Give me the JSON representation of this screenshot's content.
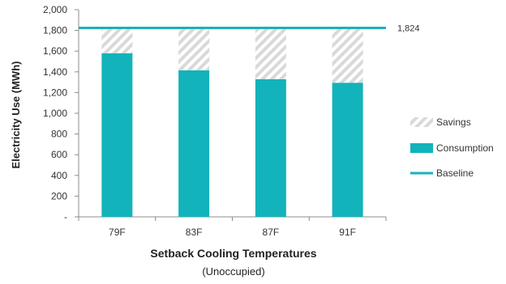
{
  "chart_data": {
    "type": "bar",
    "categories": [
      "79F",
      "83F",
      "87F",
      "91F"
    ],
    "series": [
      {
        "name": "Consumption",
        "values": [
          1580,
          1415,
          1330,
          1295
        ],
        "color": "#12b3ba"
      },
      {
        "name": "Savings",
        "values": [
          244,
          409,
          494,
          529
        ],
        "color": "#d9d9d9",
        "pattern": "diagonal-hatch"
      }
    ],
    "baseline": {
      "name": "Baseline",
      "value": 1824,
      "label": "1,824",
      "color": "#19b2b8"
    },
    "ylim": [
      0,
      2000
    ],
    "yticks": [
      {
        "value": 0,
        "label": "-"
      },
      {
        "value": 200,
        "label": "200"
      },
      {
        "value": 400,
        "label": "400"
      },
      {
        "value": 600,
        "label": "600"
      },
      {
        "value": 800,
        "label": "800"
      },
      {
        "value": 1000,
        "label": "1,000"
      },
      {
        "value": 1200,
        "label": "1,200"
      },
      {
        "value": 1400,
        "label": "1,400"
      },
      {
        "value": 1600,
        "label": "1,600"
      },
      {
        "value": 1800,
        "label": "1,800"
      },
      {
        "value": 2000,
        "label": "2,000"
      }
    ],
    "ylabel": "Electricity Use (MWh)",
    "xlabel": "Setback Cooling Temperatures",
    "xlabel_sub": "(Unoccupied)",
    "legend": {
      "placement": "right",
      "entries": [
        {
          "label": "Savings",
          "kind": "hatch"
        },
        {
          "label": "Consumption",
          "kind": "solid"
        },
        {
          "label": "Baseline",
          "kind": "line"
        }
      ]
    },
    "grid": false
  }
}
